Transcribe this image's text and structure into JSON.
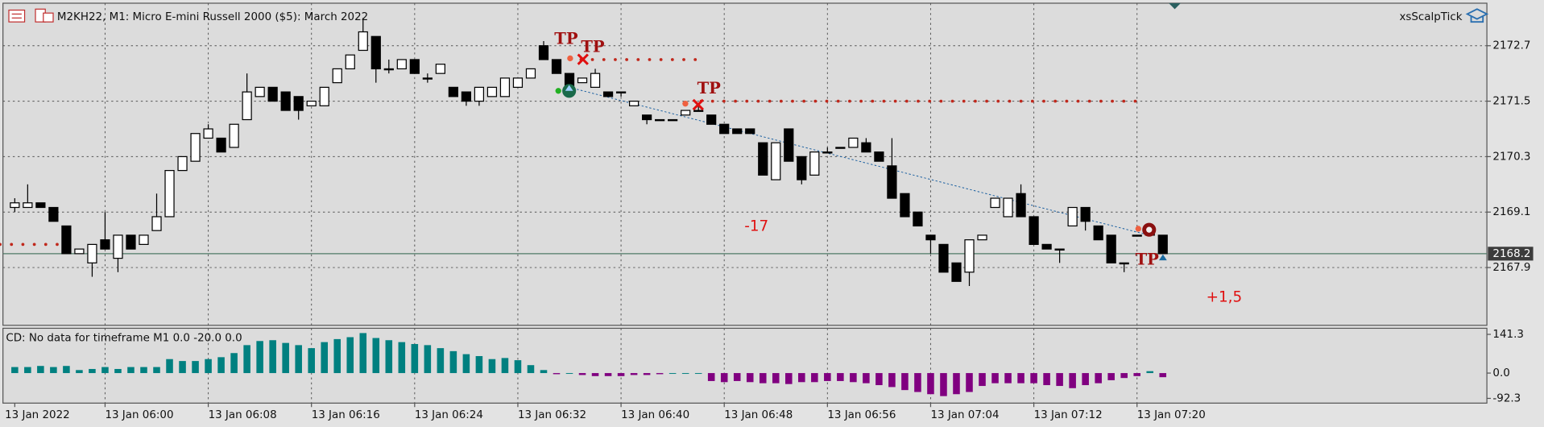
{
  "header": {
    "symbol": "M2KH22, M1:  Micro E-mini Russell 2000 ($5): March 2022",
    "expert": "xsScalpTick"
  },
  "chart_data": [
    {
      "type": "candlestick",
      "categories": [
        "13 Jan 2022",
        null,
        null,
        null,
        null,
        null,
        null,
        "13 Jan 06:00",
        null,
        null,
        null,
        null,
        null,
        null,
        null,
        "13 Jan 06:08",
        null,
        null,
        null,
        null,
        null,
        null,
        null,
        "13 Jan 06:16",
        null,
        null,
        null,
        null,
        null,
        null,
        null,
        "13 Jan 06:24",
        null,
        null,
        null,
        null,
        null,
        null,
        null,
        "13 Jan 06:32",
        null,
        null,
        null,
        null,
        null,
        null,
        null,
        "13 Jan 06:40",
        null,
        null,
        null,
        null,
        null,
        null,
        null,
        "13 Jan 06:48",
        null,
        null,
        null,
        null,
        null,
        null,
        null,
        "13 Jan 06:56",
        null,
        null,
        null,
        null,
        null,
        null,
        null,
        "13 Jan 07:04",
        null,
        null,
        null,
        null,
        null,
        null,
        null,
        "13 Jan 07:12",
        null,
        null,
        null,
        null,
        null,
        null,
        null,
        "13 Jan 07:20",
        null,
        null
      ],
      "open": [
        2169.2,
        2169.2,
        2169.3,
        2169.2,
        2168.8,
        2168.2,
        2168.0,
        2168.5,
        2168.1,
        2168.6,
        2168.4,
        2168.7,
        2169.0,
        2170.0,
        2170.2,
        2170.7,
        2170.7,
        2170.5,
        2171.1,
        2171.6,
        2171.8,
        2171.7,
        2171.6,
        2171.4,
        2171.4,
        2171.9,
        2172.2,
        2172.6,
        2172.9,
        2172.2,
        2172.2,
        2172.4,
        2172.0,
        2172.1,
        2171.8,
        2171.7,
        2171.5,
        2171.6,
        2171.6,
        2171.8,
        2172.0,
        2172.7,
        2172.4,
        2172.1,
        2171.9,
        2171.8,
        2171.7,
        2171.7,
        2171.4,
        2171.2,
        2171.1,
        2171.1,
        2171.2,
        2171.3,
        2171.2,
        2171.0,
        2170.9,
        2170.9,
        2170.6,
        2169.8,
        2170.9,
        2170.3,
        2169.9,
        2170.4,
        2170.5,
        2170.5,
        2170.6,
        2170.4,
        2170.1,
        2169.5,
        2169.1,
        2168.6,
        2168.4,
        2168.0,
        2167.8,
        2168.5,
        2169.2,
        2169.0,
        2169.5,
        2169.0,
        2168.4,
        2168.3,
        2168.8,
        2169.2,
        2168.8,
        2168.6,
        2168.0,
        2168.6,
        2168.6,
        2168.6
      ],
      "high": [
        2169.4,
        2169.7,
        2169.3,
        2169.2,
        2168.8,
        2168.3,
        2168.4,
        2169.1,
        2168.6,
        2168.6,
        2168.6,
        2169.5,
        2170.0,
        2170.3,
        2170.8,
        2171.0,
        2170.7,
        2171.0,
        2172.1,
        2171.8,
        2171.8,
        2171.7,
        2171.6,
        2171.5,
        2171.8,
        2172.2,
        2172.5,
        2173.3,
        2172.9,
        2172.4,
        2172.4,
        2172.4,
        2172.1,
        2172.3,
        2171.8,
        2171.7,
        2171.8,
        2171.8,
        2172.0,
        2172.0,
        2172.2,
        2172.8,
        2172.4,
        2172.1,
        2172.0,
        2172.2,
        2171.7,
        2171.7,
        2171.5,
        2171.2,
        2171.1,
        2171.1,
        2171.3,
        2171.4,
        2171.2,
        2171.0,
        2170.9,
        2170.9,
        2170.6,
        2170.6,
        2170.9,
        2170.3,
        2170.4,
        2170.5,
        2170.5,
        2170.7,
        2170.7,
        2170.4,
        2170.7,
        2169.5,
        2169.1,
        2168.6,
        2168.4,
        2168.0,
        2168.5,
        2168.6,
        2169.4,
        2169.4,
        2169.7,
        2169.0,
        2168.4,
        2168.3,
        2169.2,
        2169.2,
        2168.8,
        2168.6,
        2168.0,
        2168.6,
        2168.7,
        2168.6
      ],
      "low": [
        2169.1,
        2169.2,
        2169.2,
        2168.9,
        2168.2,
        2168.2,
        2167.7,
        2168.3,
        2167.8,
        2168.3,
        2168.4,
        2168.7,
        2169.0,
        2170.0,
        2170.2,
        2170.7,
        2170.4,
        2170.5,
        2171.1,
        2171.6,
        2171.5,
        2171.3,
        2171.1,
        2171.4,
        2171.4,
        2171.9,
        2172.2,
        2172.6,
        2171.9,
        2172.1,
        2172.2,
        2172.1,
        2171.9,
        2172.1,
        2171.6,
        2171.4,
        2171.4,
        2171.6,
        2171.6,
        2171.8,
        2172.0,
        2172.4,
        2172.1,
        2171.7,
        2171.9,
        2171.8,
        2171.6,
        2171.6,
        2171.4,
        2171.0,
        2171.1,
        2171.1,
        2171.2,
        2171.3,
        2171.0,
        2170.8,
        2170.8,
        2170.8,
        2169.9,
        2169.8,
        2170.2,
        2169.7,
        2169.9,
        2170.4,
        2170.5,
        2170.5,
        2170.4,
        2170.2,
        2169.4,
        2169.0,
        2168.8,
        2168.2,
        2167.8,
        2167.6,
        2167.5,
        2168.5,
        2169.2,
        2169.0,
        2169.0,
        2168.4,
        2168.3,
        2168.0,
        2168.8,
        2168.7,
        2168.5,
        2168.0,
        2167.8,
        2168.6,
        2168.6,
        2168.2
      ],
      "close": [
        2169.3,
        2169.3,
        2169.2,
        2168.9,
        2168.2,
        2168.3,
        2168.4,
        2168.3,
        2168.6,
        2168.3,
        2168.6,
        2169.0,
        2170.0,
        2170.3,
        2170.8,
        2170.9,
        2170.4,
        2171.0,
        2171.7,
        2171.8,
        2171.5,
        2171.3,
        2171.3,
        2171.5,
        2171.8,
        2172.2,
        2172.5,
        2173.0,
        2172.2,
        2172.2,
        2172.4,
        2172.1,
        2172.0,
        2172.3,
        2171.6,
        2171.5,
        2171.8,
        2171.8,
        2172.0,
        2172.0,
        2172.2,
        2172.4,
        2172.1,
        2171.7,
        2172.0,
        2172.1,
        2171.6,
        2171.7,
        2171.5,
        2171.1,
        2171.1,
        2171.1,
        2171.3,
        2171.3,
        2171.0,
        2170.8,
        2170.8,
        2170.8,
        2169.9,
        2170.6,
        2170.2,
        2169.8,
        2170.4,
        2170.4,
        2170.5,
        2170.7,
        2170.4,
        2170.2,
        2169.4,
        2169.0,
        2168.8,
        2168.5,
        2167.8,
        2167.6,
        2168.5,
        2168.6,
        2169.4,
        2169.4,
        2169.0,
        2168.4,
        2168.3,
        2168.3,
        2169.2,
        2168.9,
        2168.5,
        2168.0,
        2168.0,
        2168.6,
        2168.7,
        2168.2
      ],
      "up_color": "#ffffff",
      "down_color": "#000000",
      "ylim": [
        2166.65,
        2173.62
      ],
      "yticks": [
        2172.7,
        2171.5,
        2170.3,
        2169.1,
        2167.9
      ],
      "grid": true,
      "last_price": 2168.2,
      "levels": [
        2172.4,
        2171.5,
        2168.4
      ],
      "level_color": "#c0281c",
      "trade_line": [
        2171.8,
        2168.6
      ],
      "annotations": [
        "TP",
        "TP",
        "TP",
        "TP",
        "-17",
        "+1,5"
      ]
    },
    {
      "type": "bar",
      "title": "CD: No data for timeframe M1 0.0 -20.0 0.0",
      "values": [
        22,
        22,
        26,
        22,
        26,
        11,
        15,
        22,
        15,
        22,
        22,
        22,
        51,
        44,
        44,
        51,
        58,
        73,
        102,
        117,
        120,
        110,
        102,
        91,
        113,
        124,
        131,
        146,
        128,
        120,
        113,
        106,
        102,
        91,
        80,
        69,
        62,
        51,
        55,
        47,
        29,
        11,
        -4,
        0,
        -7,
        -11,
        -11,
        -11,
        -7,
        -7,
        -4,
        0,
        0,
        0,
        -29,
        -33,
        -29,
        -33,
        -37,
        -37,
        -40,
        -33,
        -33,
        -29,
        -29,
        -33,
        -37,
        -44,
        -51,
        -62,
        -69,
        -77,
        -84,
        -77,
        -69,
        -47,
        -37,
        -37,
        -37,
        -37,
        -44,
        -47,
        -55,
        -44,
        -37,
        -26,
        -18,
        -11,
        7,
        -15
      ],
      "positive_color": "#008080",
      "negative_color": "#800080",
      "ylim": [
        -106,
        160
      ],
      "yticks": [
        141.3,
        {
          "value": 0,
          "label": "0.0"
        },
        -92.3
      ]
    }
  ]
}
